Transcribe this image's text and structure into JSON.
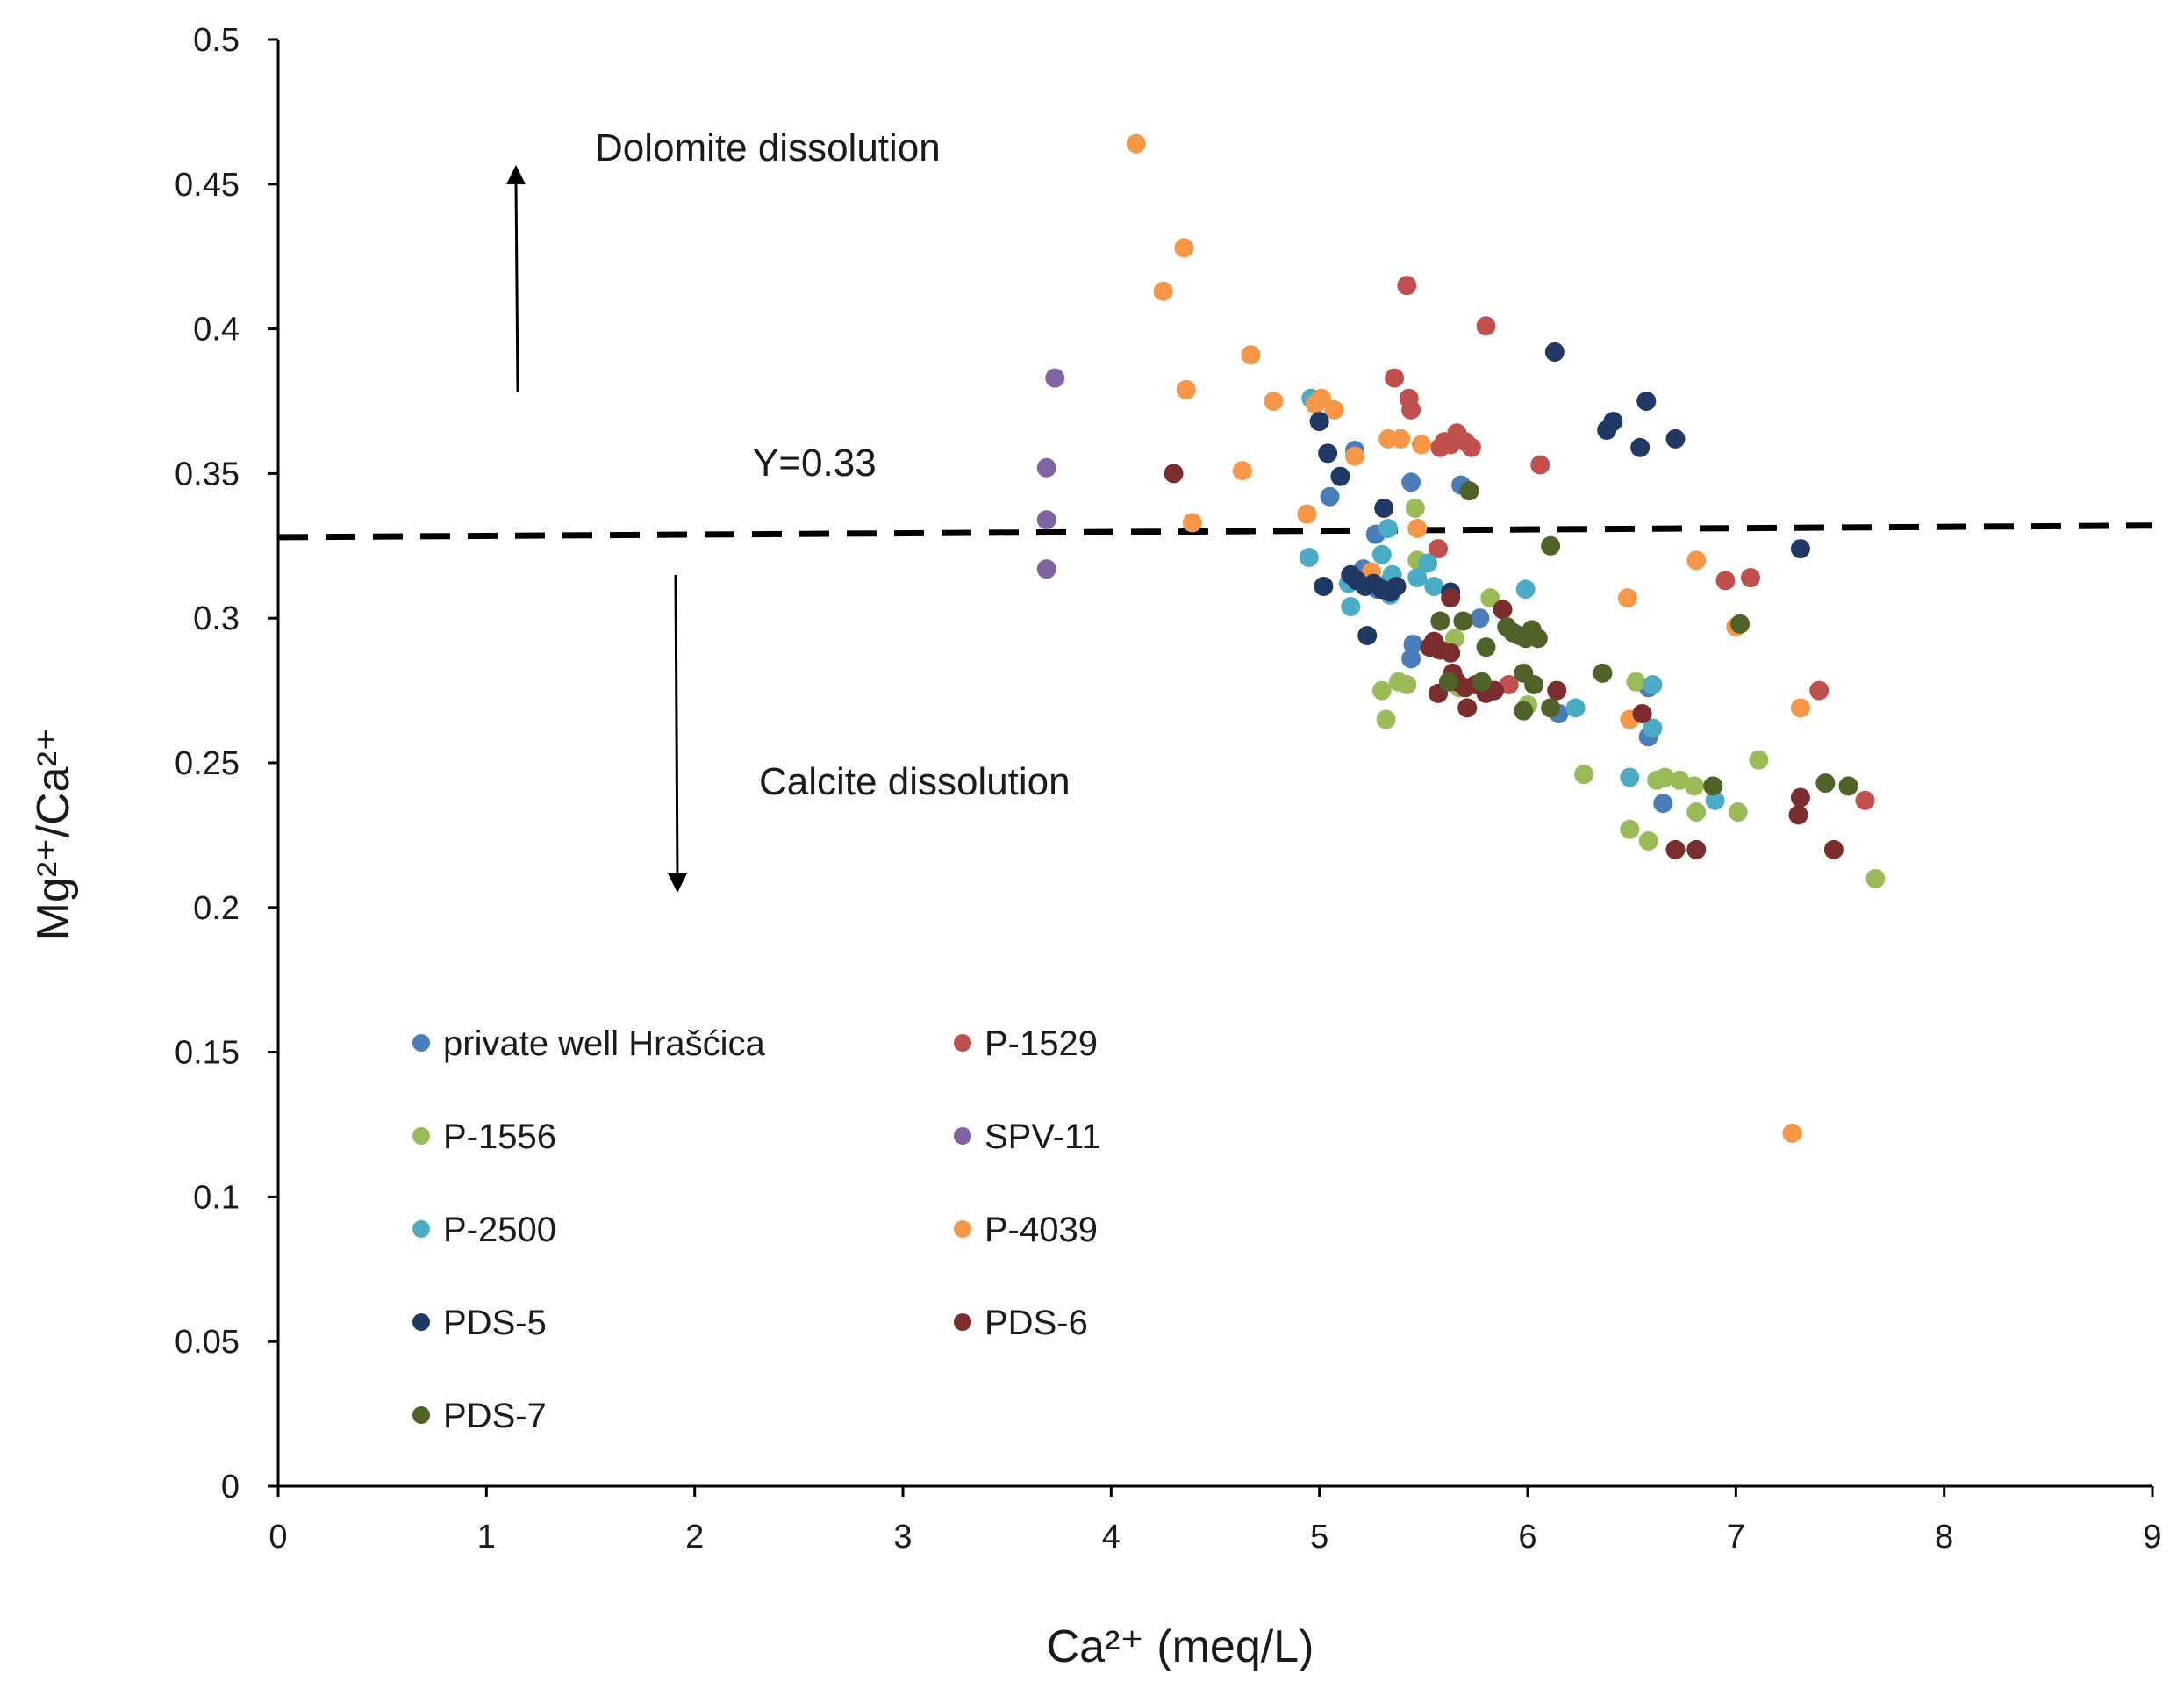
{
  "chart_data": {
    "type": "scatter",
    "title": "",
    "xlabel": "Ca²⁺ (meq/L)",
    "ylabel": "Mg²⁺/Ca²⁺",
    "xlim": [
      0,
      9
    ],
    "ylim": [
      0,
      0.5
    ],
    "x_ticks": [
      0,
      1,
      2,
      3,
      4,
      5,
      6,
      7,
      8,
      9
    ],
    "y_ticks": [
      0,
      0.05,
      0.1,
      0.15,
      0.2,
      0.25,
      0.3,
      0.35,
      0.4,
      0.45,
      0.5
    ],
    "x_tick_labels": [
      "0",
      "1",
      "2",
      "3",
      "4",
      "5",
      "6",
      "7",
      "8",
      "9"
    ],
    "y_tick_labels": [
      "0",
      "0.05",
      "0.1",
      "0.15",
      "0.2",
      "0.25",
      "0.3",
      "0.35",
      "0.4",
      "0.45",
      "0.5"
    ],
    "grid": false,
    "legend_position": "bottom-left (inside plot)",
    "reference_line": {
      "label": "Y=0.33",
      "y_start": 0.328,
      "y_end": 0.332,
      "style": "dashed",
      "color": "#000000"
    },
    "annotations": [
      {
        "text": "Dolomite dissolution",
        "arrow": "up"
      },
      {
        "text": "Calcite dissolution",
        "arrow": "down"
      }
    ],
    "series": [
      {
        "name": "private well Hrašćica",
        "color": "#4a7ebb",
        "points": [
          [
            5.05,
            0.342
          ],
          [
            5.17,
            0.358
          ],
          [
            5.27,
            0.329
          ],
          [
            5.44,
            0.347
          ],
          [
            5.68,
            0.346
          ],
          [
            5.45,
            0.291
          ],
          [
            5.44,
            0.286
          ],
          [
            5.21,
            0.317
          ],
          [
            5.34,
            0.313
          ],
          [
            5.77,
            0.3
          ],
          [
            6.15,
            0.267
          ],
          [
            6.58,
            0.259
          ],
          [
            6.58,
            0.276
          ],
          [
            6.65,
            0.236
          ],
          [
            5.28,
            0.31
          ]
        ]
      },
      {
        "name": "P-1529",
        "color": "#c0504d",
        "points": [
          [
            5.42,
            0.415
          ],
          [
            5.36,
            0.383
          ],
          [
            5.43,
            0.376
          ],
          [
            5.44,
            0.372
          ],
          [
            5.8,
            0.401
          ],
          [
            5.58,
            0.359
          ],
          [
            5.6,
            0.361
          ],
          [
            5.63,
            0.36
          ],
          [
            5.66,
            0.364
          ],
          [
            5.7,
            0.361
          ],
          [
            5.73,
            0.359
          ],
          [
            6.06,
            0.353
          ],
          [
            5.57,
            0.324
          ],
          [
            6.95,
            0.313
          ],
          [
            7.07,
            0.314
          ],
          [
            7.4,
            0.275
          ],
          [
            7.62,
            0.237
          ],
          [
            5.91,
            0.277
          ]
        ]
      },
      {
        "name": "P-1556",
        "color": "#9bbb59",
        "points": [
          [
            5.46,
            0.338
          ],
          [
            5.47,
            0.32
          ],
          [
            5.82,
            0.307
          ],
          [
            5.65,
            0.293
          ],
          [
            5.3,
            0.275
          ],
          [
            5.38,
            0.278
          ],
          [
            5.42,
            0.277
          ],
          [
            5.32,
            0.265
          ],
          [
            5.67,
            0.276
          ],
          [
            6.0,
            0.27
          ],
          [
            6.27,
            0.246
          ],
          [
            6.49,
            0.227
          ],
          [
            6.52,
            0.278
          ],
          [
            6.58,
            0.223
          ],
          [
            6.62,
            0.244
          ],
          [
            6.66,
            0.245
          ],
          [
            6.73,
            0.244
          ],
          [
            6.8,
            0.242
          ],
          [
            6.81,
            0.233
          ],
          [
            7.01,
            0.233
          ],
          [
            7.11,
            0.251
          ],
          [
            7.67,
            0.21
          ]
        ]
      },
      {
        "name": "SPV-11",
        "color": "#8064a2",
        "points": [
          [
            3.73,
            0.383
          ],
          [
            3.69,
            0.352
          ],
          [
            3.69,
            0.334
          ],
          [
            3.69,
            0.317
          ]
        ]
      },
      {
        "name": "P-2500",
        "color": "#4bacc6",
        "points": [
          [
            4.96,
            0.376
          ],
          [
            4.95,
            0.321
          ],
          [
            5.14,
            0.312
          ],
          [
            5.15,
            0.304
          ],
          [
            5.3,
            0.322
          ],
          [
            5.33,
            0.331
          ],
          [
            5.35,
            0.315
          ],
          [
            5.34,
            0.308
          ],
          [
            5.37,
            0.311
          ],
          [
            5.47,
            0.314
          ],
          [
            5.52,
            0.319
          ],
          [
            5.55,
            0.311
          ],
          [
            5.99,
            0.31
          ],
          [
            6.23,
            0.269
          ],
          [
            6.49,
            0.245
          ],
          [
            6.6,
            0.262
          ],
          [
            6.9,
            0.237
          ],
          [
            6.6,
            0.277
          ]
        ]
      },
      {
        "name": "P-4039",
        "color": "#f79646",
        "points": [
          [
            4.12,
            0.464
          ],
          [
            4.35,
            0.428
          ],
          [
            4.25,
            0.413
          ],
          [
            4.36,
            0.379
          ],
          [
            4.67,
            0.391
          ],
          [
            4.78,
            0.375
          ],
          [
            4.98,
            0.374
          ],
          [
            5.01,
            0.376
          ],
          [
            5.07,
            0.372
          ],
          [
            4.63,
            0.351
          ],
          [
            4.39,
            0.333
          ],
          [
            4.94,
            0.336
          ],
          [
            5.17,
            0.356
          ],
          [
            5.33,
            0.362
          ],
          [
            5.39,
            0.362
          ],
          [
            5.49,
            0.36
          ],
          [
            5.47,
            0.331
          ],
          [
            5.25,
            0.316
          ],
          [
            6.48,
            0.307
          ],
          [
            6.81,
            0.32
          ],
          [
            6.49,
            0.265
          ],
          [
            7.31,
            0.269
          ],
          [
            7.27,
            0.122
          ],
          [
            7.0,
            0.297
          ]
        ]
      },
      {
        "name": "PDS-5",
        "color": "#1f3864",
        "points": [
          [
            6.13,
            0.392
          ],
          [
            5.0,
            0.368
          ],
          [
            5.04,
            0.357
          ],
          [
            5.1,
            0.349
          ],
          [
            5.31,
            0.338
          ],
          [
            6.38,
            0.365
          ],
          [
            6.41,
            0.368
          ],
          [
            6.57,
            0.375
          ],
          [
            6.54,
            0.359
          ],
          [
            6.71,
            0.362
          ],
          [
            5.02,
            0.311
          ],
          [
            5.15,
            0.315
          ],
          [
            5.18,
            0.313
          ],
          [
            5.22,
            0.311
          ],
          [
            5.26,
            0.312
          ],
          [
            5.3,
            0.31
          ],
          [
            5.34,
            0.309
          ],
          [
            5.37,
            0.311
          ],
          [
            5.63,
            0.309
          ],
          [
            5.23,
            0.294
          ],
          [
            7.31,
            0.324
          ]
        ]
      },
      {
        "name": "PDS-6",
        "color": "#7b2c2c",
        "points": [
          [
            4.3,
            0.35
          ],
          [
            5.63,
            0.307
          ],
          [
            5.55,
            0.292
          ],
          [
            5.58,
            0.289
          ],
          [
            5.63,
            0.288
          ],
          [
            5.64,
            0.281
          ],
          [
            5.66,
            0.278
          ],
          [
            5.7,
            0.276
          ],
          [
            5.75,
            0.277
          ],
          [
            5.8,
            0.274
          ],
          [
            5.84,
            0.275
          ],
          [
            5.88,
            0.303
          ],
          [
            5.57,
            0.274
          ],
          [
            5.71,
            0.269
          ],
          [
            6.14,
            0.275
          ],
          [
            6.55,
            0.267
          ],
          [
            6.71,
            0.22
          ],
          [
            6.81,
            0.22
          ],
          [
            7.31,
            0.238
          ],
          [
            7.3,
            0.232
          ],
          [
            7.47,
            0.22
          ],
          [
            5.53,
            0.29
          ]
        ]
      },
      {
        "name": "PDS-7",
        "color": "#4f6228",
        "points": [
          [
            5.72,
            0.344
          ],
          [
            5.58,
            0.299
          ],
          [
            5.69,
            0.299
          ],
          [
            5.8,
            0.29
          ],
          [
            5.9,
            0.297
          ],
          [
            5.93,
            0.295
          ],
          [
            5.96,
            0.294
          ],
          [
            5.99,
            0.293
          ],
          [
            6.02,
            0.296
          ],
          [
            6.05,
            0.293
          ],
          [
            6.11,
            0.325
          ],
          [
            5.62,
            0.278
          ],
          [
            5.78,
            0.278
          ],
          [
            5.98,
            0.281
          ],
          [
            6.03,
            0.277
          ],
          [
            5.98,
            0.268
          ],
          [
            6.11,
            0.269
          ],
          [
            6.36,
            0.281
          ],
          [
            6.89,
            0.242
          ],
          [
            7.02,
            0.298
          ],
          [
            7.43,
            0.243
          ],
          [
            7.54,
            0.242
          ]
        ]
      }
    ]
  }
}
